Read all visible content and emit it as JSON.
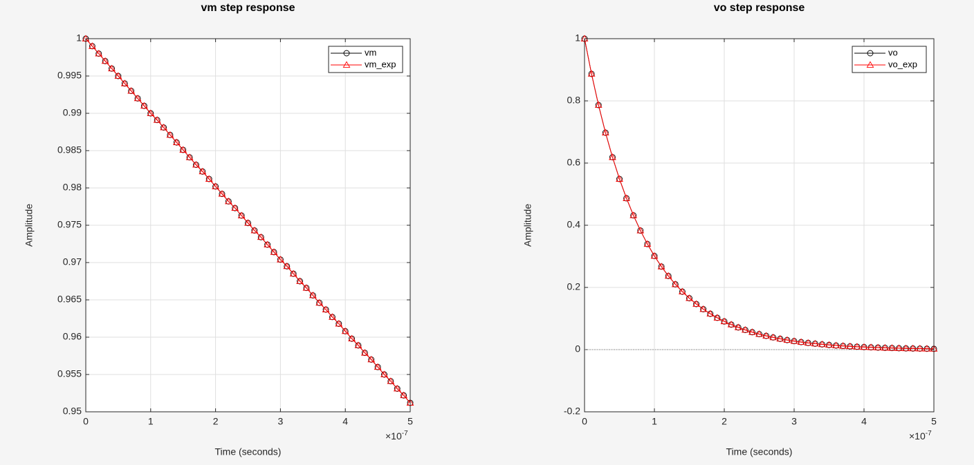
{
  "chart_data": [
    {
      "type": "line",
      "title": "vm step response",
      "xlabel": "Time (seconds)",
      "ylabel": "Amplitude",
      "x_exponent": {
        "base": "×10",
        "power": "-7"
      },
      "x": [
        0,
        0.1,
        0.2,
        0.3,
        0.4,
        0.5,
        0.6,
        0.7,
        0.8,
        0.9,
        1,
        1.1,
        1.2,
        1.3,
        1.4,
        1.5,
        1.6,
        1.7,
        1.8,
        1.9,
        2,
        2.1,
        2.2,
        2.3,
        2.4,
        2.5,
        2.6,
        2.7,
        2.8,
        2.9,
        3,
        3.1,
        3.2,
        3.3,
        3.4,
        3.5,
        3.6,
        3.7,
        3.8,
        3.9,
        4,
        4.1,
        4.2,
        4.3,
        4.4,
        4.5,
        4.6,
        4.7,
        4.8,
        4.9,
        5
      ],
      "xlim": [
        0,
        5
      ],
      "xticks": [
        0,
        1,
        2,
        3,
        4,
        5
      ],
      "ylim": [
        0.95,
        1
      ],
      "yticks": [
        0.95,
        0.955,
        0.96,
        0.965,
        0.97,
        0.975,
        0.98,
        0.985,
        0.99,
        0.995,
        1
      ],
      "grid": true,
      "legend": "upper right",
      "series": [
        {
          "name": "vm",
          "color": "#000000",
          "marker": "circle",
          "values": [
            1,
            0.999,
            0.998,
            0.997,
            0.996,
            0.995,
            0.994,
            0.993,
            0.992,
            0.991,
            0.99,
            0.9891,
            0.9881,
            0.9871,
            0.9861,
            0.9851,
            0.9841,
            0.9831,
            0.9822,
            0.9812,
            0.9802,
            0.9792,
            0.9782,
            0.9773,
            0.9763,
            0.9753,
            0.9743,
            0.9734,
            0.9724,
            0.9714,
            0.9704,
            0.9695,
            0.9685,
            0.9675,
            0.9666,
            0.9656,
            0.9646,
            0.9637,
            0.9627,
            0.9618,
            0.9608,
            0.9598,
            0.9589,
            0.9579,
            0.957,
            0.956,
            0.955,
            0.9541,
            0.9531,
            0.9522,
            0.9512
          ]
        },
        {
          "name": "vm_exp",
          "color": "#ff0000",
          "marker": "triangle",
          "values": [
            1,
            0.999,
            0.998,
            0.997,
            0.996,
            0.995,
            0.994,
            0.993,
            0.992,
            0.991,
            0.99,
            0.9891,
            0.9881,
            0.9871,
            0.9861,
            0.9851,
            0.9841,
            0.9831,
            0.9822,
            0.9812,
            0.9802,
            0.9792,
            0.9782,
            0.9773,
            0.9763,
            0.9753,
            0.9743,
            0.9734,
            0.9724,
            0.9714,
            0.9704,
            0.9695,
            0.9685,
            0.9675,
            0.9666,
            0.9656,
            0.9646,
            0.9637,
            0.9627,
            0.9618,
            0.9608,
            0.9598,
            0.9589,
            0.9579,
            0.957,
            0.956,
            0.955,
            0.9541,
            0.9531,
            0.9522,
            0.9512
          ]
        }
      ]
    },
    {
      "type": "line",
      "title": "vo step response",
      "xlabel": "Time (seconds)",
      "ylabel": "Amplitude",
      "x_exponent": {
        "base": "×10",
        "power": "-7"
      },
      "x": [
        0,
        0.1,
        0.2,
        0.3,
        0.4,
        0.5,
        0.6,
        0.7,
        0.8,
        0.9,
        1,
        1.1,
        1.2,
        1.3,
        1.4,
        1.5,
        1.6,
        1.7,
        1.8,
        1.9,
        2,
        2.1,
        2.2,
        2.3,
        2.4,
        2.5,
        2.6,
        2.7,
        2.8,
        2.9,
        3,
        3.1,
        3.2,
        3.3,
        3.4,
        3.5,
        3.6,
        3.7,
        3.8,
        3.9,
        4,
        4.1,
        4.2,
        4.3,
        4.4,
        4.5,
        4.6,
        4.7,
        4.8,
        4.9,
        5
      ],
      "xlim": [
        0,
        5
      ],
      "xticks": [
        0,
        1,
        2,
        3,
        4,
        5
      ],
      "ylim": [
        -0.2,
        1
      ],
      "yticks": [
        -0.2,
        0,
        0.2,
        0.4,
        0.6,
        0.8,
        1
      ],
      "grid": true,
      "legend": "upper right",
      "hline": 0,
      "series": [
        {
          "name": "vo",
          "color": "#000000",
          "marker": "circle",
          "values": [
            1,
            0.8869,
            0.7866,
            0.6977,
            0.6188,
            0.5488,
            0.4868,
            0.4317,
            0.3829,
            0.3396,
            0.3012,
            0.2671,
            0.2369,
            0.2101,
            0.1864,
            0.1653,
            0.1466,
            0.13,
            0.1153,
            0.1023,
            0.0907,
            0.0805,
            0.0714,
            0.0633,
            0.0561,
            0.0498,
            0.0442,
            0.0392,
            0.0347,
            0.0308,
            0.0273,
            0.0242,
            0.0215,
            0.0191,
            0.0169,
            0.015,
            0.0133,
            0.0118,
            0.0105,
            0.0093,
            0.0082,
            0.0073,
            0.0065,
            0.0057,
            0.0051,
            0.0045,
            0.004,
            0.0036,
            0.0032,
            0.0028,
            0.0025
          ]
        },
        {
          "name": "vo_exp",
          "color": "#ff0000",
          "marker": "triangle",
          "values": [
            1,
            0.8869,
            0.7866,
            0.6977,
            0.6188,
            0.5488,
            0.4868,
            0.4317,
            0.3829,
            0.3396,
            0.3012,
            0.2671,
            0.2369,
            0.2101,
            0.1864,
            0.1653,
            0.1466,
            0.13,
            0.1153,
            0.1023,
            0.0907,
            0.0805,
            0.0714,
            0.0633,
            0.0561,
            0.0498,
            0.0442,
            0.0392,
            0.0347,
            0.0308,
            0.0273,
            0.0242,
            0.0215,
            0.0191,
            0.0169,
            0.015,
            0.0133,
            0.0118,
            0.0105,
            0.0093,
            0.0082,
            0.0073,
            0.0065,
            0.0057,
            0.0051,
            0.0045,
            0.004,
            0.0036,
            0.0032,
            0.0028,
            0.0025
          ]
        }
      ]
    }
  ]
}
